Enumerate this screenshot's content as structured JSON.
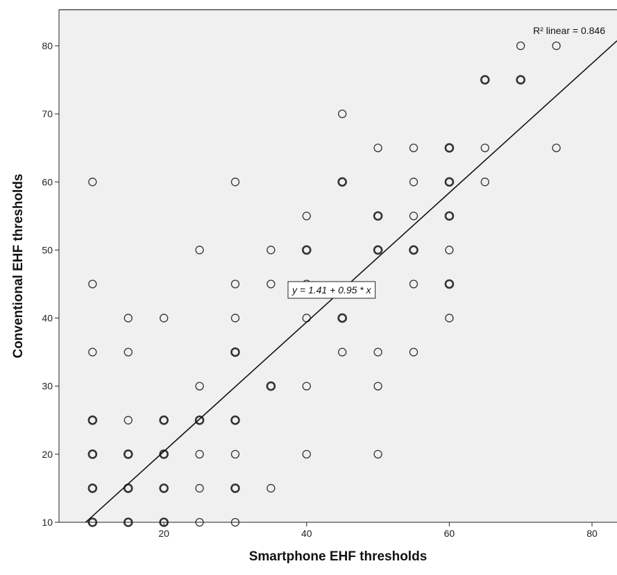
{
  "chart_data": {
    "type": "scatter",
    "xlabel": "Smartphone EHF thresholds",
    "ylabel": "Conventional EHF thresholds",
    "xlim": [
      5.3,
      83.5
    ],
    "ylim": [
      10,
      85.3
    ],
    "xticks": [
      20,
      40,
      60,
      80
    ],
    "yticks": [
      10,
      20,
      30,
      40,
      50,
      60,
      70,
      80
    ],
    "grid": false,
    "background_color": "#f0f0f0",
    "marker": "open-circle",
    "fit_line": {
      "intercept": 1.41,
      "slope": 0.95,
      "equation_label": "y = 1.41 + 0.95 * x",
      "r2_label": "R² linear = 0.846"
    },
    "points": [
      {
        "x": 10,
        "y": 10
      },
      {
        "x": 10,
        "y": 15
      },
      {
        "x": 10,
        "y": 20
      },
      {
        "x": 10,
        "y": 25
      },
      {
        "x": 10,
        "y": 35
      },
      {
        "x": 10,
        "y": 45
      },
      {
        "x": 10,
        "y": 60
      },
      {
        "x": 15,
        "y": 10
      },
      {
        "x": 15,
        "y": 15
      },
      {
        "x": 15,
        "y": 20
      },
      {
        "x": 15,
        "y": 25
      },
      {
        "x": 15,
        "y": 35
      },
      {
        "x": 15,
        "y": 40
      },
      {
        "x": 20,
        "y": 10
      },
      {
        "x": 20,
        "y": 15
      },
      {
        "x": 20,
        "y": 20
      },
      {
        "x": 20,
        "y": 25
      },
      {
        "x": 20,
        "y": 40
      },
      {
        "x": 25,
        "y": 10
      },
      {
        "x": 25,
        "y": 15
      },
      {
        "x": 25,
        "y": 20
      },
      {
        "x": 25,
        "y": 25
      },
      {
        "x": 25,
        "y": 30
      },
      {
        "x": 25,
        "y": 50
      },
      {
        "x": 30,
        "y": 10
      },
      {
        "x": 30,
        "y": 15
      },
      {
        "x": 30,
        "y": 20
      },
      {
        "x": 30,
        "y": 25
      },
      {
        "x": 30,
        "y": 35
      },
      {
        "x": 30,
        "y": 40
      },
      {
        "x": 30,
        "y": 45
      },
      {
        "x": 30,
        "y": 60
      },
      {
        "x": 35,
        "y": 15
      },
      {
        "x": 35,
        "y": 30
      },
      {
        "x": 35,
        "y": 45
      },
      {
        "x": 35,
        "y": 50
      },
      {
        "x": 40,
        "y": 20
      },
      {
        "x": 40,
        "y": 30
      },
      {
        "x": 40,
        "y": 40
      },
      {
        "x": 40,
        "y": 45
      },
      {
        "x": 40,
        "y": 50
      },
      {
        "x": 40,
        "y": 55
      },
      {
        "x": 45,
        "y": 35
      },
      {
        "x": 45,
        "y": 40
      },
      {
        "x": 45,
        "y": 60
      },
      {
        "x": 45,
        "y": 70
      },
      {
        "x": 50,
        "y": 20
      },
      {
        "x": 50,
        "y": 30
      },
      {
        "x": 50,
        "y": 35
      },
      {
        "x": 50,
        "y": 50
      },
      {
        "x": 50,
        "y": 55
      },
      {
        "x": 50,
        "y": 65
      },
      {
        "x": 55,
        "y": 35
      },
      {
        "x": 55,
        "y": 45
      },
      {
        "x": 55,
        "y": 50
      },
      {
        "x": 55,
        "y": 55
      },
      {
        "x": 55,
        "y": 60
      },
      {
        "x": 55,
        "y": 65
      },
      {
        "x": 60,
        "y": 40
      },
      {
        "x": 60,
        "y": 45
      },
      {
        "x": 60,
        "y": 50
      },
      {
        "x": 60,
        "y": 55
      },
      {
        "x": 60,
        "y": 60
      },
      {
        "x": 60,
        "y": 65
      },
      {
        "x": 65,
        "y": 60
      },
      {
        "x": 65,
        "y": 65
      },
      {
        "x": 65,
        "y": 75
      },
      {
        "x": 70,
        "y": 75
      },
      {
        "x": 70,
        "y": 80
      },
      {
        "x": 75,
        "y": 65
      },
      {
        "x": 75,
        "y": 80
      }
    ],
    "overlapping_points": [
      {
        "x": 10,
        "y": 10
      },
      {
        "x": 10,
        "y": 15
      },
      {
        "x": 10,
        "y": 20
      },
      {
        "x": 10,
        "y": 25
      },
      {
        "x": 15,
        "y": 10
      },
      {
        "x": 15,
        "y": 15
      },
      {
        "x": 15,
        "y": 20
      },
      {
        "x": 20,
        "y": 10
      },
      {
        "x": 20,
        "y": 15
      },
      {
        "x": 20,
        "y": 20
      },
      {
        "x": 20,
        "y": 25
      },
      {
        "x": 25,
        "y": 25
      },
      {
        "x": 30,
        "y": 15
      },
      {
        "x": 30,
        "y": 25
      },
      {
        "x": 30,
        "y": 35
      },
      {
        "x": 35,
        "y": 30
      },
      {
        "x": 40,
        "y": 50
      },
      {
        "x": 45,
        "y": 40
      },
      {
        "x": 45,
        "y": 60
      },
      {
        "x": 50,
        "y": 50
      },
      {
        "x": 50,
        "y": 55
      },
      {
        "x": 55,
        "y": 50
      },
      {
        "x": 60,
        "y": 45
      },
      {
        "x": 60,
        "y": 55
      },
      {
        "x": 60,
        "y": 60
      },
      {
        "x": 60,
        "y": 65
      },
      {
        "x": 65,
        "y": 75
      },
      {
        "x": 70,
        "y": 75
      }
    ]
  }
}
